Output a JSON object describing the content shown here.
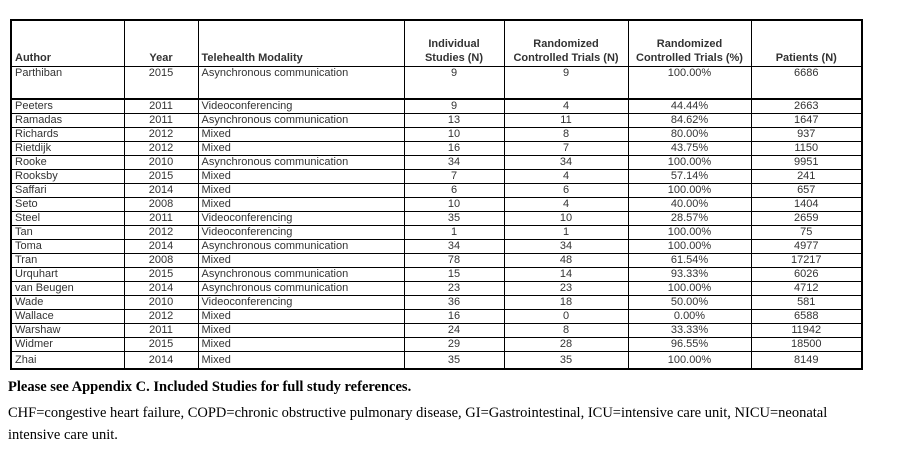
{
  "table": {
    "columns": [
      "Author",
      "Year",
      "Telehealth Modality",
      "Individual Studies (N)",
      "Randomized Controlled Trials (N)",
      "Randomized Controlled Trials (%)",
      "Patients (N)"
    ],
    "rows": [
      [
        "Parthiban",
        "2015",
        "Asynchronous communication",
        "9",
        "9",
        "100.00%",
        "6686"
      ],
      [
        "Peeters",
        "2011",
        "Videoconferencing",
        "9",
        "4",
        "44.44%",
        "2663"
      ],
      [
        "Ramadas",
        "2011",
        "Asynchronous communication",
        "13",
        "11",
        "84.62%",
        "1647"
      ],
      [
        "Richards",
        "2012",
        "Mixed",
        "10",
        "8",
        "80.00%",
        "937"
      ],
      [
        "Rietdijk",
        "2012",
        "Mixed",
        "16",
        "7",
        "43.75%",
        "1150"
      ],
      [
        "Rooke",
        "2010",
        "Asynchronous communication",
        "34",
        "34",
        "100.00%",
        "9951"
      ],
      [
        "Rooksby",
        "2015",
        "Mixed",
        "7",
        "4",
        "57.14%",
        "241"
      ],
      [
        "Saffari",
        "2014",
        "Mixed",
        "6",
        "6",
        "100.00%",
        "657"
      ],
      [
        "Seto",
        "2008",
        "Mixed",
        "10",
        "4",
        "40.00%",
        "1404"
      ],
      [
        "Steel",
        "2011",
        "Videoconferencing",
        "35",
        "10",
        "28.57%",
        "2659"
      ],
      [
        "Tan",
        "2012",
        "Videoconferencing",
        "1",
        "1",
        "100.00%",
        "75"
      ],
      [
        "Toma",
        "2014",
        "Asynchronous communication",
        "34",
        "34",
        "100.00%",
        "4977"
      ],
      [
        "Tran",
        "2008",
        "Mixed",
        "78",
        "48",
        "61.54%",
        "17217"
      ],
      [
        "Urquhart",
        "2015",
        "Asynchronous communication",
        "15",
        "14",
        "93.33%",
        "6026"
      ],
      [
        "van Beugen",
        "2014",
        "Asynchronous communication",
        "23",
        "23",
        "100.00%",
        "4712"
      ],
      [
        "Wade",
        "2010",
        "Videoconferencing",
        "36",
        "18",
        "50.00%",
        "581"
      ],
      [
        "Wallace",
        "2012",
        "Mixed",
        "16",
        "0",
        "0.00%",
        "6588"
      ],
      [
        "Warshaw",
        "2011",
        "Mixed",
        "24",
        "8",
        "33.33%",
        "11942"
      ],
      [
        "Widmer",
        "2015",
        "Mixed",
        "29",
        "28",
        "96.55%",
        "18500"
      ],
      [
        "Zhai",
        "2014",
        "Mixed",
        "35",
        "35",
        "100.00%",
        "8149"
      ]
    ]
  },
  "footer": {
    "appendix_note": "Please see Appendix C. Included Studies for full study references.",
    "abbreviations": "CHF=congestive heart failure, COPD=chronic obstructive pulmonary disease, GI=Gastrointestinal, ICU=intensive care unit, NICU=neonatal intensive care unit."
  }
}
